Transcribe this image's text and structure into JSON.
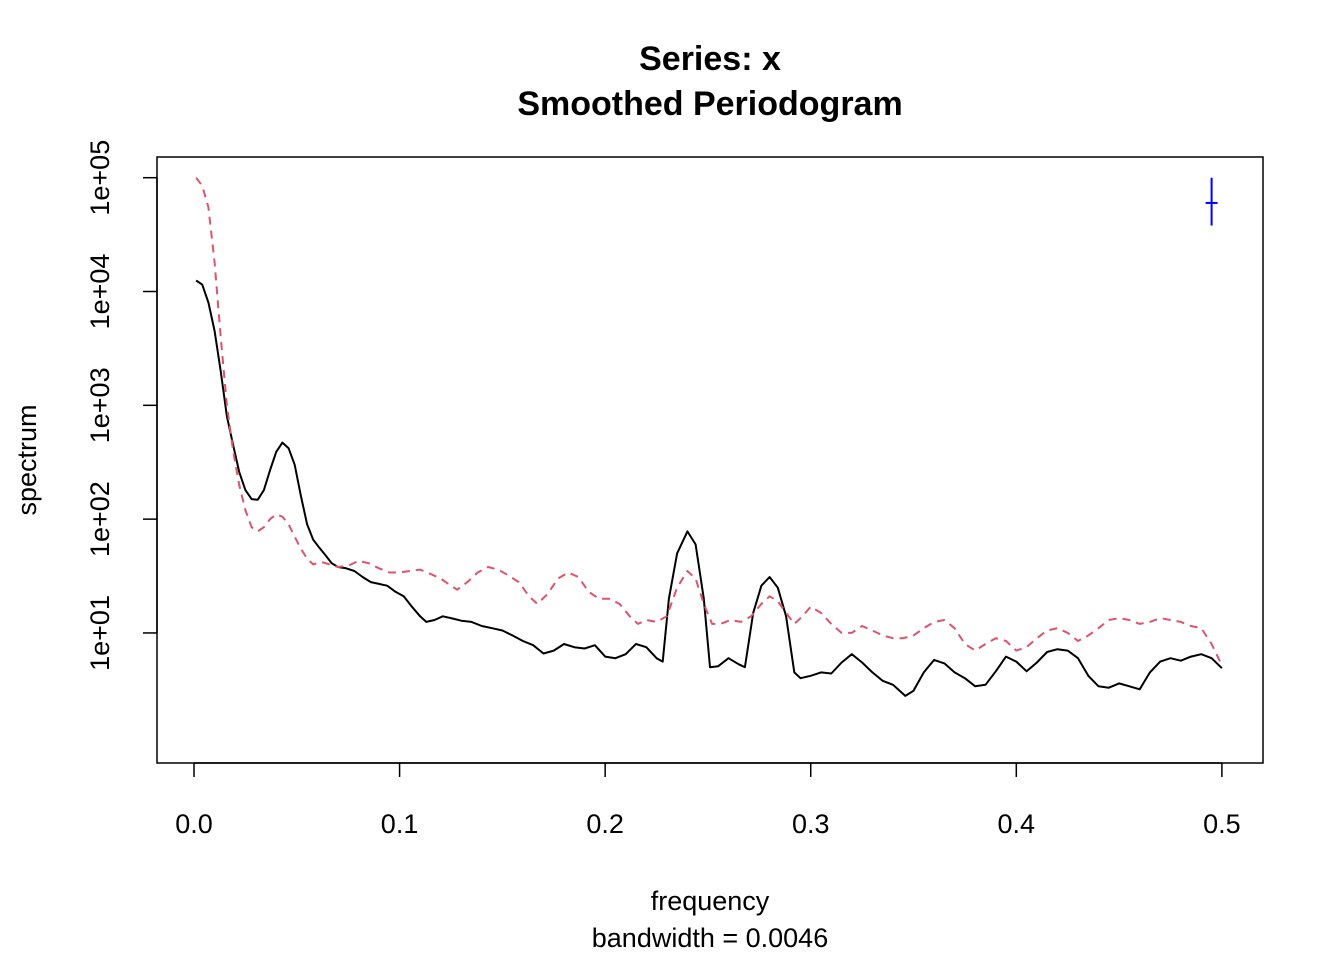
{
  "chart_data": {
    "type": "line",
    "title": "Series: x",
    "subtitle": "Smoothed Periodogram",
    "xlabel": "frequency",
    "xsublabel": "bandwidth = 0.0046",
    "ylabel": "spectrum",
    "y_scale": "log",
    "xlim": [
      -0.018,
      0.52
    ],
    "ylim": [
      0.72,
      152000
    ],
    "x_ticks": [
      {
        "value": 0.0,
        "label": "0.0"
      },
      {
        "value": 0.1,
        "label": "0.1"
      },
      {
        "value": 0.2,
        "label": "0.2"
      },
      {
        "value": 0.3,
        "label": "0.3"
      },
      {
        "value": 0.4,
        "label": "0.4"
      },
      {
        "value": 0.5,
        "label": "0.5"
      }
    ],
    "y_ticks": [
      {
        "value": 10,
        "label": "1e+01"
      },
      {
        "value": 100,
        "label": "1e+02"
      },
      {
        "value": 1000,
        "label": "1e+03"
      },
      {
        "value": 10000,
        "label": "1e+04"
      },
      {
        "value": 100000,
        "label": "1e+05"
      }
    ],
    "grid": false,
    "legend": "none",
    "series": [
      {
        "color": "#000000",
        "style": "solid",
        "points": [
          [
            0.001,
            12500
          ],
          [
            0.004,
            11500
          ],
          [
            0.007,
            8000
          ],
          [
            0.01,
            4500
          ],
          [
            0.013,
            2000
          ],
          [
            0.016,
            800
          ],
          [
            0.019,
            450
          ],
          [
            0.022,
            260
          ],
          [
            0.025,
            180
          ],
          [
            0.028,
            150
          ],
          [
            0.031,
            148
          ],
          [
            0.034,
            180
          ],
          [
            0.037,
            270
          ],
          [
            0.04,
            390
          ],
          [
            0.043,
            470
          ],
          [
            0.046,
            420
          ],
          [
            0.049,
            300
          ],
          [
            0.052,
            160
          ],
          [
            0.055,
            90
          ],
          [
            0.058,
            66
          ],
          [
            0.061,
            56
          ],
          [
            0.064,
            48
          ],
          [
            0.067,
            41
          ],
          [
            0.07,
            38
          ],
          [
            0.074,
            37
          ],
          [
            0.078,
            35
          ],
          [
            0.082,
            31
          ],
          [
            0.086,
            28
          ],
          [
            0.09,
            27
          ],
          [
            0.094,
            26
          ],
          [
            0.098,
            23
          ],
          [
            0.102,
            21
          ],
          [
            0.106,
            17
          ],
          [
            0.11,
            14
          ],
          [
            0.113,
            12.5
          ],
          [
            0.117,
            13
          ],
          [
            0.121,
            14
          ],
          [
            0.125,
            13.5
          ],
          [
            0.13,
            12.8
          ],
          [
            0.135,
            12.5
          ],
          [
            0.14,
            11.5
          ],
          [
            0.145,
            11
          ],
          [
            0.15,
            10.5
          ],
          [
            0.155,
            9.5
          ],
          [
            0.16,
            8.5
          ],
          [
            0.165,
            7.8
          ],
          [
            0.17,
            6.6
          ],
          [
            0.175,
            7
          ],
          [
            0.18,
            8
          ],
          [
            0.185,
            7.5
          ],
          [
            0.19,
            7.3
          ],
          [
            0.195,
            7.8
          ],
          [
            0.2,
            6.2
          ],
          [
            0.205,
            6
          ],
          [
            0.21,
            6.5
          ],
          [
            0.215,
            8
          ],
          [
            0.22,
            7.5
          ],
          [
            0.225,
            6
          ],
          [
            0.228,
            5.6
          ],
          [
            0.231,
            20
          ],
          [
            0.235,
            50
          ],
          [
            0.24,
            78
          ],
          [
            0.244,
            60
          ],
          [
            0.248,
            20
          ],
          [
            0.251,
            5
          ],
          [
            0.255,
            5.1
          ],
          [
            0.26,
            6
          ],
          [
            0.265,
            5.3
          ],
          [
            0.268,
            5
          ],
          [
            0.272,
            15
          ],
          [
            0.276,
            26
          ],
          [
            0.28,
            31
          ],
          [
            0.284,
            25
          ],
          [
            0.288,
            14
          ],
          [
            0.292,
            4.5
          ],
          [
            0.295,
            4
          ],
          [
            0.3,
            4.2
          ],
          [
            0.305,
            4.5
          ],
          [
            0.31,
            4.4
          ],
          [
            0.315,
            5.5
          ],
          [
            0.32,
            6.5
          ],
          [
            0.325,
            5.5
          ],
          [
            0.33,
            4.5
          ],
          [
            0.335,
            3.8
          ],
          [
            0.34,
            3.5
          ],
          [
            0.346,
            2.8
          ],
          [
            0.35,
            3.1
          ],
          [
            0.355,
            4.5
          ],
          [
            0.36,
            5.8
          ],
          [
            0.365,
            5.4
          ],
          [
            0.37,
            4.5
          ],
          [
            0.375,
            4.0
          ],
          [
            0.38,
            3.4
          ],
          [
            0.385,
            3.5
          ],
          [
            0.39,
            4.6
          ],
          [
            0.395,
            6.2
          ],
          [
            0.4,
            5.6
          ],
          [
            0.405,
            4.6
          ],
          [
            0.41,
            5.5
          ],
          [
            0.415,
            6.8
          ],
          [
            0.42,
            7.2
          ],
          [
            0.425,
            7
          ],
          [
            0.43,
            6
          ],
          [
            0.435,
            4.2
          ],
          [
            0.44,
            3.4
          ],
          [
            0.445,
            3.3
          ],
          [
            0.45,
            3.6
          ],
          [
            0.455,
            3.4
          ],
          [
            0.46,
            3.2
          ],
          [
            0.465,
            4.5
          ],
          [
            0.47,
            5.6
          ],
          [
            0.475,
            6
          ],
          [
            0.48,
            5.7
          ],
          [
            0.485,
            6.2
          ],
          [
            0.49,
            6.5
          ],
          [
            0.495,
            6
          ],
          [
            0.5,
            4.9
          ]
        ]
      },
      {
        "color": "#df536b",
        "style": "dashed",
        "points": [
          [
            0.001,
            100000
          ],
          [
            0.004,
            85000
          ],
          [
            0.007,
            55000
          ],
          [
            0.01,
            18000
          ],
          [
            0.013,
            4000
          ],
          [
            0.016,
            1000
          ],
          [
            0.019,
            400
          ],
          [
            0.022,
            200
          ],
          [
            0.025,
            120
          ],
          [
            0.028,
            85
          ],
          [
            0.031,
            78
          ],
          [
            0.034,
            85
          ],
          [
            0.037,
            100
          ],
          [
            0.04,
            110
          ],
          [
            0.043,
            105
          ],
          [
            0.046,
            90
          ],
          [
            0.049,
            70
          ],
          [
            0.052,
            55
          ],
          [
            0.055,
            45
          ],
          [
            0.058,
            40
          ],
          [
            0.062,
            42
          ],
          [
            0.066,
            40
          ],
          [
            0.07,
            38
          ],
          [
            0.075,
            39
          ],
          [
            0.08,
            43
          ],
          [
            0.085,
            41
          ],
          [
            0.09,
            37
          ],
          [
            0.095,
            34
          ],
          [
            0.1,
            34
          ],
          [
            0.105,
            35
          ],
          [
            0.11,
            36
          ],
          [
            0.115,
            33
          ],
          [
            0.12,
            30
          ],
          [
            0.125,
            26
          ],
          [
            0.128,
            24
          ],
          [
            0.133,
            28
          ],
          [
            0.138,
            34
          ],
          [
            0.143,
            38
          ],
          [
            0.148,
            36
          ],
          [
            0.153,
            32
          ],
          [
            0.158,
            28
          ],
          [
            0.163,
            21
          ],
          [
            0.167,
            18
          ],
          [
            0.172,
            22
          ],
          [
            0.177,
            30
          ],
          [
            0.182,
            34
          ],
          [
            0.187,
            31
          ],
          [
            0.192,
            23
          ],
          [
            0.197,
            20
          ],
          [
            0.202,
            20
          ],
          [
            0.207,
            18
          ],
          [
            0.212,
            14
          ],
          [
            0.216,
            12
          ],
          [
            0.22,
            13
          ],
          [
            0.225,
            12.5
          ],
          [
            0.23,
            14
          ],
          [
            0.235,
            25
          ],
          [
            0.24,
            35
          ],
          [
            0.244,
            30
          ],
          [
            0.248,
            18
          ],
          [
            0.252,
            12
          ],
          [
            0.256,
            12
          ],
          [
            0.261,
            13
          ],
          [
            0.266,
            12.5
          ],
          [
            0.271,
            14
          ],
          [
            0.276,
            18
          ],
          [
            0.28,
            21
          ],
          [
            0.284,
            19
          ],
          [
            0.288,
            15
          ],
          [
            0.292,
            12
          ],
          [
            0.296,
            14
          ],
          [
            0.3,
            17
          ],
          [
            0.305,
            15
          ],
          [
            0.31,
            12
          ],
          [
            0.315,
            10
          ],
          [
            0.32,
            10
          ],
          [
            0.325,
            11.5
          ],
          [
            0.33,
            10.5
          ],
          [
            0.335,
            9.5
          ],
          [
            0.34,
            9
          ],
          [
            0.345,
            9
          ],
          [
            0.35,
            9.5
          ],
          [
            0.355,
            11
          ],
          [
            0.36,
            12.5
          ],
          [
            0.365,
            13
          ],
          [
            0.37,
            11
          ],
          [
            0.375,
            8
          ],
          [
            0.38,
            7
          ],
          [
            0.385,
            8
          ],
          [
            0.39,
            9
          ],
          [
            0.395,
            8.5
          ],
          [
            0.4,
            7
          ],
          [
            0.405,
            7.5
          ],
          [
            0.41,
            9
          ],
          [
            0.415,
            10.5
          ],
          [
            0.42,
            11
          ],
          [
            0.425,
            10
          ],
          [
            0.43,
            8.5
          ],
          [
            0.435,
            9.5
          ],
          [
            0.44,
            11
          ],
          [
            0.445,
            13
          ],
          [
            0.45,
            13.5
          ],
          [
            0.455,
            13
          ],
          [
            0.46,
            12
          ],
          [
            0.465,
            12.5
          ],
          [
            0.47,
            13.5
          ],
          [
            0.475,
            13
          ],
          [
            0.48,
            12.5
          ],
          [
            0.485,
            11.5
          ],
          [
            0.49,
            11
          ],
          [
            0.495,
            8
          ],
          [
            0.5,
            5.2
          ]
        ]
      }
    ],
    "ci_bar": {
      "color": "#0000ff",
      "x": 0.495,
      "y_center": 60000,
      "y_low": 38000,
      "y_high": 100000
    }
  }
}
